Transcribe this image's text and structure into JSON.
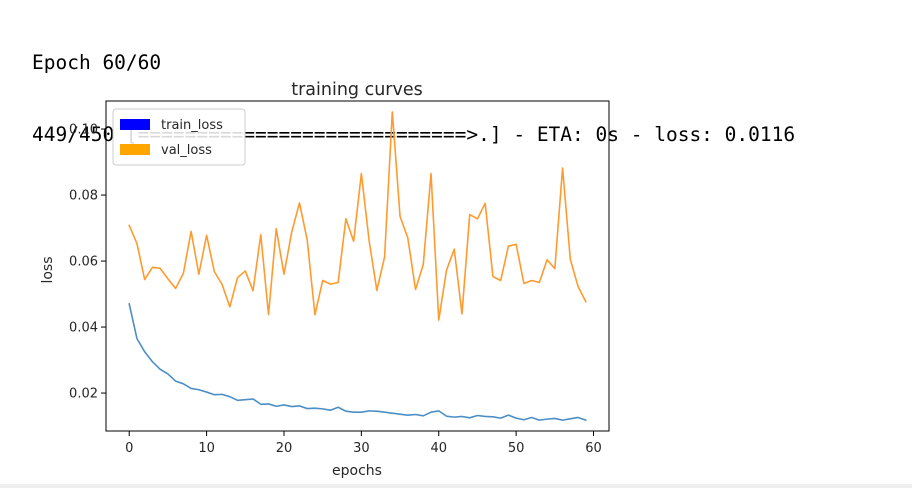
{
  "console": {
    "epoch_line": "Epoch 60/60",
    "progress_line": "449/450 [============================>.] - ETA: 0s - loss: 0.0116"
  },
  "chart_data": {
    "type": "line",
    "title": "training curves",
    "xlabel": "epochs",
    "ylabel": "loss",
    "xlim": [
      -3,
      62
    ],
    "ylim": [
      0.0085,
      0.1085
    ],
    "xticks": [
      0,
      10,
      20,
      30,
      40,
      50,
      60
    ],
    "xtick_labels": [
      "0",
      "10",
      "20",
      "30",
      "40",
      "50",
      "60"
    ],
    "yticks": [
      0.02,
      0.04,
      0.06,
      0.08,
      0.1
    ],
    "ytick_labels": [
      "0.02",
      "0.04",
      "0.06",
      "0.08",
      "0.10"
    ],
    "grid": false,
    "legend_position": "top-left",
    "x": [
      0,
      1,
      2,
      3,
      4,
      5,
      6,
      7,
      8,
      9,
      10,
      11,
      12,
      13,
      14,
      15,
      16,
      17,
      18,
      19,
      20,
      21,
      22,
      23,
      24,
      25,
      26,
      27,
      28,
      29,
      30,
      31,
      32,
      33,
      34,
      35,
      36,
      37,
      38,
      39,
      40,
      41,
      42,
      43,
      44,
      45,
      46,
      47,
      48,
      49,
      50,
      51,
      52,
      53,
      54,
      55,
      56,
      57,
      58,
      59
    ],
    "series": [
      {
        "name": "train_loss",
        "legend_color": "#0000ff",
        "color": "#4c8fc6",
        "values": [
          0.047,
          0.0365,
          0.0325,
          0.0295,
          0.0272,
          0.0258,
          0.0236,
          0.0228,
          0.0214,
          0.021,
          0.0203,
          0.0195,
          0.0196,
          0.0189,
          0.0178,
          0.018,
          0.0182,
          0.0166,
          0.0167,
          0.016,
          0.0164,
          0.0159,
          0.0161,
          0.0153,
          0.0154,
          0.0152,
          0.0148,
          0.0157,
          0.0145,
          0.0142,
          0.0142,
          0.0146,
          0.0145,
          0.0142,
          0.0139,
          0.0136,
          0.0133,
          0.0135,
          0.0131,
          0.0142,
          0.0146,
          0.013,
          0.0127,
          0.0129,
          0.0125,
          0.0132,
          0.0129,
          0.0128,
          0.0124,
          0.0133,
          0.0124,
          0.0119,
          0.0126,
          0.0118,
          0.0121,
          0.0123,
          0.0118,
          0.0122,
          0.0126,
          0.0118
        ]
      },
      {
        "name": "val_loss",
        "legend_color": "#ffa500",
        "color": "#ff9a2e",
        "values": [
          0.0708,
          0.0653,
          0.0544,
          0.0581,
          0.0578,
          0.0546,
          0.0517,
          0.0563,
          0.069,
          0.056,
          0.0678,
          0.0568,
          0.0529,
          0.0461,
          0.055,
          0.057,
          0.051,
          0.068,
          0.0438,
          0.0698,
          0.056,
          0.0688,
          0.0776,
          0.0664,
          0.0437,
          0.0541,
          0.053,
          0.0535,
          0.0728,
          0.066,
          0.0865,
          0.0662,
          0.0511,
          0.0612,
          0.1052,
          0.0735,
          0.067,
          0.0514,
          0.059,
          0.0865,
          0.0421,
          0.0572,
          0.0636,
          0.044,
          0.0741,
          0.0728,
          0.0775,
          0.0553,
          0.0541,
          0.0645,
          0.0651,
          0.0532,
          0.0541,
          0.0535,
          0.0604,
          0.0577,
          0.0882,
          0.0605,
          0.0523,
          0.0477
        ]
      }
    ]
  }
}
